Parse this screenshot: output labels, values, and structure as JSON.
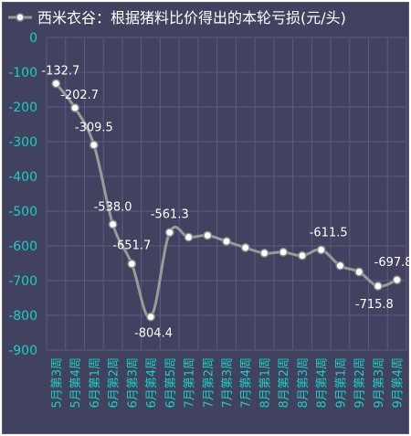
{
  "colors": {
    "background": "#414160",
    "axis_text": "#19d0c2",
    "title_text": "#ffffff",
    "line": "#9a9a9a",
    "marker_fill": "#ffffff",
    "marker_stroke": "#8a8a8a",
    "grid": "#5c5c7e",
    "data_label": "#ffffff"
  },
  "chart_data": {
    "type": "line",
    "title": "",
    "xlabel": "",
    "ylabel": "",
    "ylim": [
      -900,
      0
    ],
    "yticks": [
      0,
      -100,
      -200,
      -300,
      -400,
      -500,
      -600,
      -700,
      -800,
      -900
    ],
    "grid": true,
    "legend_position": "top-left",
    "categories": [
      "5月第3周",
      "5月第4周",
      "6月第1周",
      "6月第2周",
      "6月第3周",
      "6月第4周",
      "6月第5周",
      "7月第1周",
      "7月第2周",
      "7月第3周",
      "7月第4周",
      "8月第1周",
      "8月第2周",
      "8月第3周",
      "8月第4周",
      "9月第1周",
      "9月第2周",
      "9月第3周",
      "9月第4周"
    ],
    "series": [
      {
        "name": "西米衣谷：根据猪料比价得出的本轮亏损(元/头)",
        "values": [
          -132.7,
          -202.7,
          -309.5,
          -538.0,
          -651.7,
          -804.4,
          -561.3,
          -575,
          -570,
          -587,
          -605,
          -621,
          -618,
          -628,
          -611.5,
          -657,
          -675,
          -715.8,
          -697.8
        ],
        "labels": [
          "-132.7",
          "-202.7",
          "-309.5",
          "-538.0",
          "-651.7",
          "-804.4",
          "-561.3",
          null,
          null,
          null,
          null,
          null,
          null,
          null,
          "-611.5",
          null,
          null,
          "-715.8",
          "-697.8"
        ]
      }
    ]
  }
}
